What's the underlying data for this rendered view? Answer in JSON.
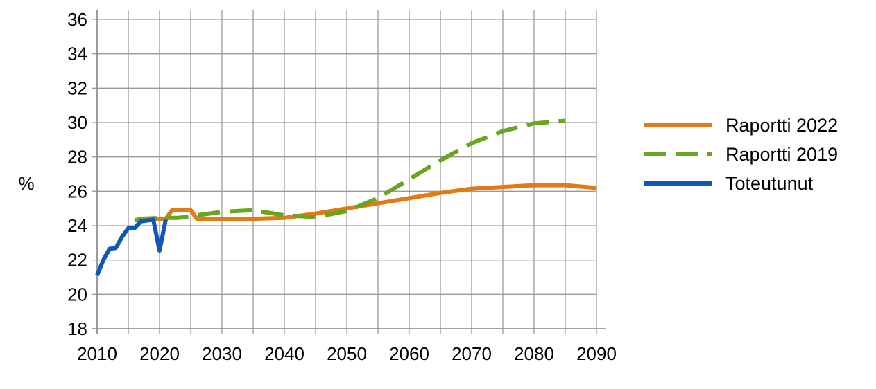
{
  "chart_data": {
    "type": "line",
    "title": "",
    "xlabel": "",
    "ylabel": "%",
    "xlim": [
      2010,
      2090
    ],
    "ylim": [
      18,
      36
    ],
    "x_ticks": [
      2010,
      2020,
      2030,
      2040,
      2050,
      2060,
      2070,
      2080,
      2090
    ],
    "x_tick_labels": [
      "2010",
      "2020",
      "2030",
      "2040",
      "2050",
      "2060",
      "2070",
      "2080",
      "2090"
    ],
    "x_minor_step": 5,
    "y_ticks": [
      18,
      20,
      22,
      24,
      26,
      28,
      30,
      32,
      34,
      36
    ],
    "y_tick_labels": [
      "18",
      "20",
      "22",
      "24",
      "26",
      "28",
      "30",
      "32",
      "34",
      "36"
    ],
    "grid": true,
    "legend_position": "right",
    "series": [
      {
        "name": "Raportti 2022",
        "color": "#E07B16",
        "style": "solid",
        "points": [
          [
            2018,
            24.4
          ],
          [
            2020,
            24.4
          ],
          [
            2021,
            24.4
          ],
          [
            2022,
            24.9
          ],
          [
            2023,
            24.9
          ],
          [
            2025,
            24.9
          ],
          [
            2026,
            24.4
          ],
          [
            2030,
            24.4
          ],
          [
            2035,
            24.4
          ],
          [
            2040,
            24.45
          ],
          [
            2045,
            24.7
          ],
          [
            2050,
            25.0
          ],
          [
            2055,
            25.3
          ],
          [
            2060,
            25.6
          ],
          [
            2065,
            25.9
          ],
          [
            2070,
            26.15
          ],
          [
            2075,
            26.25
          ],
          [
            2080,
            26.35
          ],
          [
            2085,
            26.35
          ],
          [
            2090,
            26.2
          ]
        ]
      },
      {
        "name": "Raportti 2019",
        "color": "#6AA521",
        "style": "dashed",
        "points": [
          [
            2016,
            24.3
          ],
          [
            2017,
            24.4
          ],
          [
            2020,
            24.45
          ],
          [
            2023,
            24.45
          ],
          [
            2025,
            24.55
          ],
          [
            2030,
            24.8
          ],
          [
            2035,
            24.9
          ],
          [
            2040,
            24.6
          ],
          [
            2045,
            24.5
          ],
          [
            2050,
            24.85
          ],
          [
            2055,
            25.6
          ],
          [
            2060,
            26.7
          ],
          [
            2065,
            27.8
          ],
          [
            2070,
            28.8
          ],
          [
            2075,
            29.5
          ],
          [
            2080,
            29.95
          ],
          [
            2085,
            30.1
          ]
        ]
      },
      {
        "name": "Toteutunut",
        "color": "#1257B5",
        "style": "solid",
        "points": [
          [
            2010,
            21.1
          ],
          [
            2011,
            22.0
          ],
          [
            2012,
            22.65
          ],
          [
            2013,
            22.7
          ],
          [
            2014,
            23.35
          ],
          [
            2015,
            23.85
          ],
          [
            2016,
            23.85
          ],
          [
            2017,
            24.25
          ],
          [
            2018,
            24.3
          ],
          [
            2019,
            24.35
          ],
          [
            2020,
            22.55
          ],
          [
            2021,
            24.35
          ]
        ]
      }
    ]
  }
}
